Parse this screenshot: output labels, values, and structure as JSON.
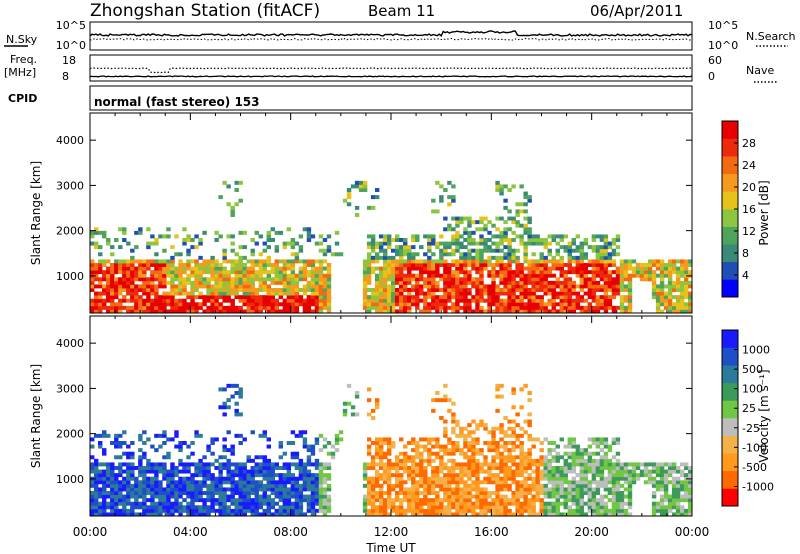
{
  "header": {
    "station": "Zhongshan Station (fitACF)",
    "beam": "Beam 11",
    "date": "06/Apr/2011"
  },
  "strips": {
    "noise": {
      "left_label": "N.Sky",
      "left_ticks": [
        "10^5",
        "10^0"
      ],
      "right_label": "N.Search",
      "right_ticks": [
        "10^5",
        "10^0"
      ]
    },
    "freq": {
      "left_label_1": "Freq.",
      "left_label_2": "[MHz]",
      "left_ticks": [
        "18",
        "8"
      ],
      "right_label": "Nave",
      "right_ticks": [
        "60",
        "0"
      ]
    },
    "cpid": {
      "label": "CPID",
      "text": "normal (fast stereo) 153"
    }
  },
  "colors": {
    "power": [
      "#0000ff",
      "#1f4fb4",
      "#3a8a78",
      "#4fa35a",
      "#8cc63f",
      "#e8c21a",
      "#f59a1f",
      "#f46a12",
      "#ee2a0c",
      "#e60000"
    ],
    "velocity": [
      "#ff0000",
      "#ff6a00",
      "#ff9a1e",
      "#f3b14a",
      "#bdbdbd",
      "#71c644",
      "#3c9a5a",
      "#2b7a9a",
      "#1f4fc8",
      "#1a1aff"
    ]
  },
  "chart_data": [
    {
      "type": "heatmap",
      "name": "Power",
      "xlabel": "",
      "ylabel": "Slant Range [km]",
      "x_ticks": [
        "00:00",
        "04:00",
        "08:00",
        "12:00",
        "16:00",
        "20:00",
        "00:00"
      ],
      "xlim_hours": [
        0,
        24
      ],
      "y_ticks": [
        1000,
        2000,
        3000,
        4000
      ],
      "ylim": [
        180,
        4600
      ],
      "colorbar_label": "Power [dB]",
      "colorbar_ticks": [
        4,
        8,
        12,
        16,
        20,
        24,
        28
      ],
      "colorbar_range": [
        0,
        32
      ]
    },
    {
      "type": "heatmap",
      "name": "Velocity",
      "xlabel": "Time UT",
      "ylabel": "Slant Range [km]",
      "x_ticks": [
        "00:00",
        "04:00",
        "08:00",
        "12:00",
        "16:00",
        "20:00",
        "00:00"
      ],
      "xlim_hours": [
        0,
        24
      ],
      "y_ticks": [
        1000,
        2000,
        3000,
        4000
      ],
      "ylim": [
        180,
        4600
      ],
      "colorbar_label": "Velocity [m s⁻¹]",
      "colorbar_ticks": [
        "1000",
        "500",
        "100",
        "25",
        "-25",
        "-100",
        "-500",
        "-1000"
      ]
    }
  ]
}
